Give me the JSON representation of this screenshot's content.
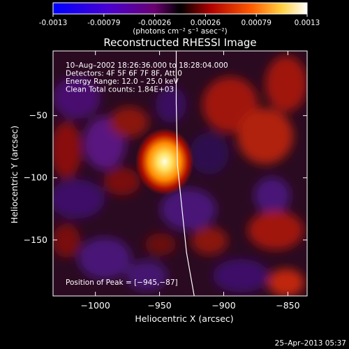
{
  "colorbar": {
    "ticks": [
      "-0.0013",
      "-0.00079",
      "-0.00026",
      "0.00026",
      "0.00079",
      "0.0013"
    ],
    "units": "(photons cm⁻² s⁻¹ asec⁻²)",
    "range": [
      -0.0013,
      0.0013
    ],
    "colors": [
      "#0000ff",
      "#5a00c8",
      "#7a007a",
      "#000000",
      "#c80000",
      "#ff9a00",
      "#ffff9a",
      "#ffffff"
    ]
  },
  "chart_data": {
    "type": "heatmap",
    "title": "Reconstructed RHESSI Image",
    "xlabel": "Heliocentric X (arcsec)",
    "ylabel": "Heliocentric Y (arcsec)",
    "xlim": [
      -1033,
      -835
    ],
    "ylim": [
      -195,
      2
    ],
    "xticks": [
      -1000,
      -950,
      -900,
      -850
    ],
    "yticks": [
      -50,
      -100,
      -150
    ],
    "xtick_labels": [
      "−1000",
      "−950",
      "−900",
      "−850"
    ],
    "ytick_labels": [
      "−50",
      "−100",
      "−150"
    ],
    "info_lines": [
      "10–Aug–2002 18:26:36.000 to 18:28:04.000",
      "Detectors: 4F 5F 6F 7F 8F, Att 0",
      "Energy Range: 12.0 – 25.0 keV",
      "Clean    Total counts: 1.84E+03"
    ],
    "peak": {
      "x": -945,
      "y": -87
    },
    "peak_label": "Position of Peak = [−945,−87]",
    "limb_points": [
      [
        -937,
        2
      ],
      [
        -937,
        -40
      ],
      [
        -936,
        -90
      ],
      [
        -933,
        -120
      ],
      [
        -929,
        -160
      ],
      [
        -923,
        -195
      ]
    ]
  },
  "timestamp": "25–Apr–2013 05:37"
}
